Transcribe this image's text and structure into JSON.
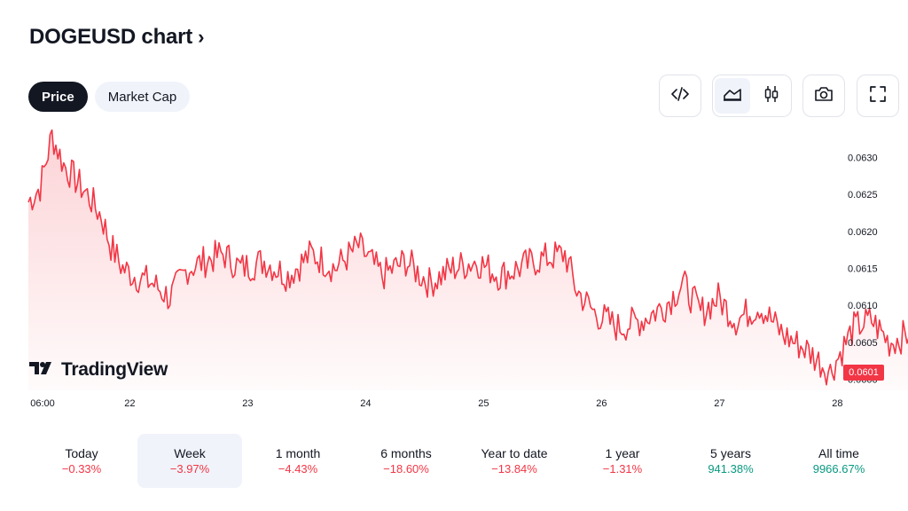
{
  "header": {
    "title": "DOGEUSD chart",
    "chevron": "›"
  },
  "toggles": [
    {
      "label": "Price",
      "active": true
    },
    {
      "label": "Market Cap",
      "active": false
    }
  ],
  "toolbar": {
    "icons": [
      "code-embed-icon",
      "area-chart-icon",
      "candlestick-icon",
      "camera-icon",
      "fullscreen-icon"
    ],
    "selected": "area-chart-icon"
  },
  "logo": {
    "text": "TradingView"
  },
  "colors": {
    "line": "#f23645",
    "positive": "#089981",
    "negative": "#f23645",
    "accent": "#131722"
  },
  "chart_data": {
    "type": "area",
    "title": "",
    "xlabel": "",
    "ylabel": "",
    "x_ticks": [
      "06:00",
      "22",
      "23",
      "24",
      "25",
      "26",
      "27",
      "28"
    ],
    "y_ticks": [
      "0.0630",
      "0.0625",
      "0.0620",
      "0.0615",
      "0.0610",
      "0.0605",
      "0.0600"
    ],
    "ylim": [
      0.05985,
      0.06345
    ],
    "last_price": "0.0601",
    "grid": false,
    "series": [
      {
        "day": [
          0,
          0.1,
          0.2,
          0.3,
          0.4,
          0.5,
          0.62,
          0.7,
          0.8,
          0.9,
          1.05,
          1.2,
          1.35,
          1.5,
          1.65,
          1.8,
          2.0,
          2.2,
          2.4,
          2.6,
          2.8,
          3.0,
          3.2,
          3.4,
          3.6,
          3.8,
          4.0,
          4.3,
          4.55,
          4.65,
          4.8,
          5.0,
          5.2,
          5.4,
          5.55,
          5.7,
          5.85,
          6.0,
          6.2,
          6.4,
          6.6,
          6.8,
          7.0,
          7.15,
          7.3,
          7.45,
          7.6,
          7.7,
          7.9,
          8.05
        ],
        "values": [
          0.0624,
          0.0626,
          0.0633,
          0.0629,
          0.0627,
          0.0625,
          0.0622,
          0.0618,
          0.0615,
          0.0614,
          0.0613,
          0.0611,
          0.0615,
          0.0616,
          0.0617,
          0.0615,
          0.0616,
          0.0614,
          0.0617,
          0.0615,
          0.0618,
          0.0614,
          0.0616,
          0.0613,
          0.0615,
          0.0616,
          0.0614,
          0.0616,
          0.0617,
          0.0612,
          0.0609,
          0.0607,
          0.0608,
          0.061,
          0.0613,
          0.0609,
          0.0611,
          0.0608,
          0.061,
          0.0606,
          0.0604,
          0.0601,
          0.0607,
          0.0608,
          0.0605,
          0.0606,
          0.0614,
          0.061,
          0.0605,
          0.0601
        ]
      }
    ]
  },
  "periods": [
    {
      "label": "Today",
      "value": "−0.33%",
      "dir": "neg",
      "selected": false
    },
    {
      "label": "Week",
      "value": "−3.97%",
      "dir": "neg",
      "selected": true
    },
    {
      "label": "1 month",
      "value": "−4.43%",
      "dir": "neg",
      "selected": false
    },
    {
      "label": "6 months",
      "value": "−18.60%",
      "dir": "neg",
      "selected": false
    },
    {
      "label": "Year to date",
      "value": "−13.84%",
      "dir": "neg",
      "selected": false
    },
    {
      "label": "1 year",
      "value": "−1.31%",
      "dir": "neg",
      "selected": false
    },
    {
      "label": "5 years",
      "value": "941.38%",
      "dir": "pos",
      "selected": false
    },
    {
      "label": "All time",
      "value": "9966.67%",
      "dir": "pos",
      "selected": false
    }
  ]
}
